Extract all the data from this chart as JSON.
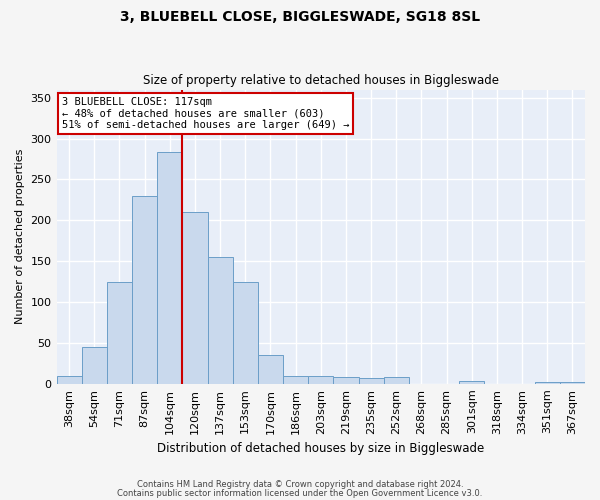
{
  "title": "3, BLUEBELL CLOSE, BIGGLESWADE, SG18 8SL",
  "subtitle": "Size of property relative to detached houses in Biggleswade",
  "xlabel": "Distribution of detached houses by size in Biggleswade",
  "ylabel": "Number of detached properties",
  "categories": [
    "38sqm",
    "54sqm",
    "71sqm",
    "87sqm",
    "104sqm",
    "120sqm",
    "137sqm",
    "153sqm",
    "170sqm",
    "186sqm",
    "203sqm",
    "219sqm",
    "235sqm",
    "252sqm",
    "268sqm",
    "285sqm",
    "301sqm",
    "318sqm",
    "334sqm",
    "351sqm",
    "367sqm"
  ],
  "values": [
    10,
    45,
    125,
    230,
    283,
    210,
    155,
    125,
    35,
    10,
    10,
    8,
    7,
    8,
    0,
    0,
    3,
    0,
    0,
    2,
    2
  ],
  "bar_color": "#c9d9ed",
  "bar_edge_color": "#6b9ec8",
  "bg_color": "#e8eef8",
  "grid_color": "#ffffff",
  "fig_bg_color": "#f5f5f5",
  "vline_color": "#cc0000",
  "annotation_text": "3 BLUEBELL CLOSE: 117sqm\n← 48% of detached houses are smaller (603)\n51% of semi-detached houses are larger (649) →",
  "annotation_box_color": "#ffffff",
  "annotation_box_edge": "#cc0000",
  "ylim": [
    0,
    360
  ],
  "yticks": [
    0,
    50,
    100,
    150,
    200,
    250,
    300,
    350
  ],
  "footer1": "Contains HM Land Registry data © Crown copyright and database right 2024.",
  "footer2": "Contains public sector information licensed under the Open Government Licence v3.0."
}
